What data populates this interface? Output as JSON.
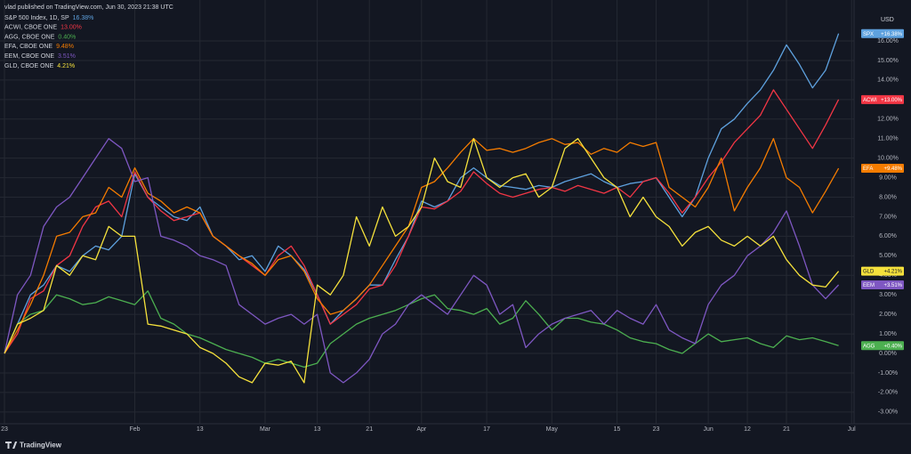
{
  "header": "vlad published on TradingView.com, Jun 30, 2023 21:38 UTC",
  "currency": "USD",
  "brand": "TradingView",
  "chart_data": {
    "type": "line",
    "categories": [
      "23",
      null,
      null,
      null,
      null,
      null,
      null,
      null,
      null,
      null,
      "Feb",
      null,
      null,
      null,
      null,
      "13",
      null,
      null,
      null,
      null,
      "Mar",
      null,
      null,
      null,
      "13",
      null,
      null,
      null,
      "21",
      null,
      null,
      null,
      "Apr",
      null,
      null,
      null,
      null,
      "17",
      null,
      null,
      null,
      null,
      "May",
      null,
      null,
      null,
      null,
      "15",
      null,
      null,
      "23",
      null,
      null,
      null,
      "Jun",
      null,
      null,
      "12",
      null,
      null,
      "21",
      null,
      null,
      null,
      null,
      "Jul"
    ],
    "series": [
      {
        "name": "S&P 500 Index, 1D, SP",
        "symbol": "SPX",
        "color": "#5ea1de",
        "legend_label": "16.38%",
        "tag_label": "+16.38%",
        "values": [
          0,
          1.5,
          3,
          3.5,
          4.5,
          4.2,
          5,
          5.5,
          5.3,
          6,
          9.2,
          8,
          7.5,
          7,
          6.8,
          7.5,
          6,
          5.5,
          4.8,
          5,
          4.2,
          5.5,
          5,
          4.3,
          3,
          1.5,
          2.2,
          2.8,
          3.5,
          3.5,
          4.8,
          6,
          7.8,
          7.5,
          7.8,
          9,
          9.5,
          9,
          8.6,
          8.5,
          8.4,
          8.6,
          8.5,
          8.8,
          9,
          9.2,
          8.8,
          8.5,
          8.7,
          8.8,
          9,
          8,
          7,
          8,
          10,
          11.5,
          12,
          12.8,
          13.5,
          14.5,
          15.8,
          14.8,
          13.6,
          14.5,
          16.38,
          null
        ]
      },
      {
        "name": "ACWI, CBOE ONE",
        "symbol": "ACWI",
        "color": "#f23645",
        "legend_label": "13.00%",
        "tag_label": "+13.00%",
        "values": [
          0,
          1,
          2.8,
          3.2,
          4.5,
          5,
          6.5,
          7.5,
          7.8,
          7,
          9.3,
          8,
          7.3,
          6.8,
          7,
          7.2,
          6,
          5.5,
          5,
          4.5,
          4,
          5,
          5.5,
          4.5,
          3,
          1.5,
          2,
          2.5,
          3.3,
          3.5,
          4.5,
          6,
          7.5,
          7.4,
          7.8,
          8.3,
          9.3,
          8.7,
          8.2,
          8,
          8.2,
          8.4,
          8.5,
          8.3,
          8.6,
          8.4,
          8.2,
          8.5,
          8,
          8.8,
          9,
          8.2,
          7.2,
          8,
          9,
          9.8,
          10.8,
          11.5,
          12.2,
          13.5,
          12.5,
          11.5,
          10.5,
          11.7,
          13.0,
          null
        ]
      },
      {
        "name": "AGG, CBOE ONE",
        "symbol": "AGG",
        "color": "#4caf50",
        "legend_label": "0.40%",
        "tag_label": "+0.40%",
        "values": [
          0,
          1.5,
          2,
          2.2,
          3,
          2.8,
          2.5,
          2.6,
          2.9,
          2.7,
          2.5,
          3.2,
          1.8,
          1.5,
          1,
          0.8,
          0.5,
          0.2,
          0,
          -0.2,
          -0.5,
          -0.3,
          -0.5,
          -0.7,
          -0.5,
          0.5,
          1,
          1.5,
          1.8,
          2,
          2.2,
          2.5,
          2.8,
          3,
          2.3,
          2.2,
          2,
          2.3,
          1.5,
          1.8,
          2.7,
          2,
          1.2,
          1.8,
          1.8,
          1.6,
          1.5,
          1.2,
          0.8,
          0.6,
          0.5,
          0.2,
          0,
          0.5,
          1,
          0.6,
          0.7,
          0.8,
          0.5,
          0.3,
          0.9,
          0.7,
          0.8,
          0.6,
          0.4,
          null
        ]
      },
      {
        "name": "EFA, CBOE ONE",
        "symbol": "EFA",
        "color": "#f57c00",
        "legend_label": "9.48%",
        "tag_label": "+9.48%",
        "values": [
          0,
          1.2,
          2.5,
          4,
          6,
          6.2,
          7,
          7.2,
          8.5,
          8,
          9.5,
          8.2,
          7.8,
          7.2,
          7.5,
          7.2,
          6,
          5.5,
          5,
          4.6,
          4,
          4.8,
          5,
          4.2,
          2.8,
          2,
          2.2,
          2.8,
          3.5,
          4.5,
          5.5,
          6.5,
          8.5,
          8.8,
          9.5,
          10.3,
          11,
          10.4,
          10.5,
          10.3,
          10.5,
          10.8,
          11,
          10.7,
          10.8,
          10.2,
          10.5,
          10.3,
          10.8,
          10.6,
          10.8,
          8.5,
          8,
          7.5,
          8.5,
          10,
          7.3,
          8.5,
          9.5,
          11,
          9,
          8.5,
          7.2,
          8.3,
          9.48,
          null
        ]
      },
      {
        "name": "EEM, CBOE ONE",
        "symbol": "EEM",
        "color": "#7e57c2",
        "legend_label": "3.51%",
        "tag_label": "+3.51%",
        "values": [
          0,
          3,
          4,
          6.5,
          7.5,
          8,
          9,
          10,
          11,
          10.5,
          8.8,
          9,
          6,
          5.8,
          5.5,
          5,
          4.8,
          4.5,
          2.5,
          2,
          1.5,
          1.8,
          2,
          1.5,
          2,
          -1,
          -1.5,
          -1,
          -0.3,
          1,
          1.5,
          2.5,
          3,
          2.5,
          2,
          3,
          4,
          3.5,
          2,
          2.5,
          0.3,
          1,
          1.5,
          1.8,
          2,
          2.2,
          1.5,
          2.2,
          1.8,
          1.5,
          2.5,
          1.2,
          0.8,
          0.5,
          2.5,
          3.5,
          4,
          5,
          5.5,
          6.2,
          7.3,
          5.5,
          3.5,
          2.8,
          3.51,
          null
        ]
      },
      {
        "name": "GLD, CBOE ONE",
        "symbol": "GLD",
        "color": "#f5e13c",
        "legend_label": "4.21%",
        "tag_label": "+4.21%",
        "values": [
          0,
          1.5,
          1.8,
          2.2,
          4.5,
          4,
          5,
          4.8,
          6.5,
          6,
          6,
          1.5,
          1.4,
          1.2,
          1,
          0.3,
          0,
          -0.5,
          -1.2,
          -1.5,
          -0.5,
          -0.6,
          -0.4,
          -1.5,
          3.5,
          3,
          4,
          7,
          5.5,
          7.5,
          6,
          6.5,
          7.5,
          10,
          8.8,
          8.5,
          11,
          9,
          8.5,
          9,
          9.2,
          8,
          8.5,
          10.5,
          11,
          10,
          9,
          8.5,
          7,
          8,
          7,
          6.5,
          5.5,
          6.2,
          6.5,
          5.8,
          5.5,
          6,
          5.5,
          6,
          4.8,
          4,
          3.5,
          3.4,
          4.21,
          null
        ]
      }
    ],
    "ylim": [
      -3.51,
      17.46
    ],
    "yticks": [
      {
        "value": -3,
        "label": "-3.00%"
      },
      {
        "value": -2,
        "label": "-2.00%"
      },
      {
        "value": -1,
        "label": "-1.00%"
      },
      {
        "value": 0,
        "label": "0.00%"
      },
      {
        "value": 1,
        "label": "1.00%"
      },
      {
        "value": 2,
        "label": "2.00%"
      },
      {
        "value": 3,
        "label": "3.00%"
      },
      {
        "value": 4,
        "label": "4.00%"
      },
      {
        "value": 5,
        "label": "5.00%"
      },
      {
        "value": 6,
        "label": "6.00%"
      },
      {
        "value": 7,
        "label": "7.00%"
      },
      {
        "value": 8,
        "label": "8.00%"
      },
      {
        "value": 9,
        "label": "9.00%"
      },
      {
        "value": 10,
        "label": "10.00%"
      },
      {
        "value": 11,
        "label": "11.00%"
      },
      {
        "value": 12,
        "label": "12.00%"
      },
      {
        "value": 13,
        "label": "13.00%"
      },
      {
        "value": 14,
        "label": "14.00%"
      },
      {
        "value": 15,
        "label": "15.00%"
      },
      {
        "value": 16,
        "label": "16.00%"
      }
    ],
    "grid": true
  }
}
